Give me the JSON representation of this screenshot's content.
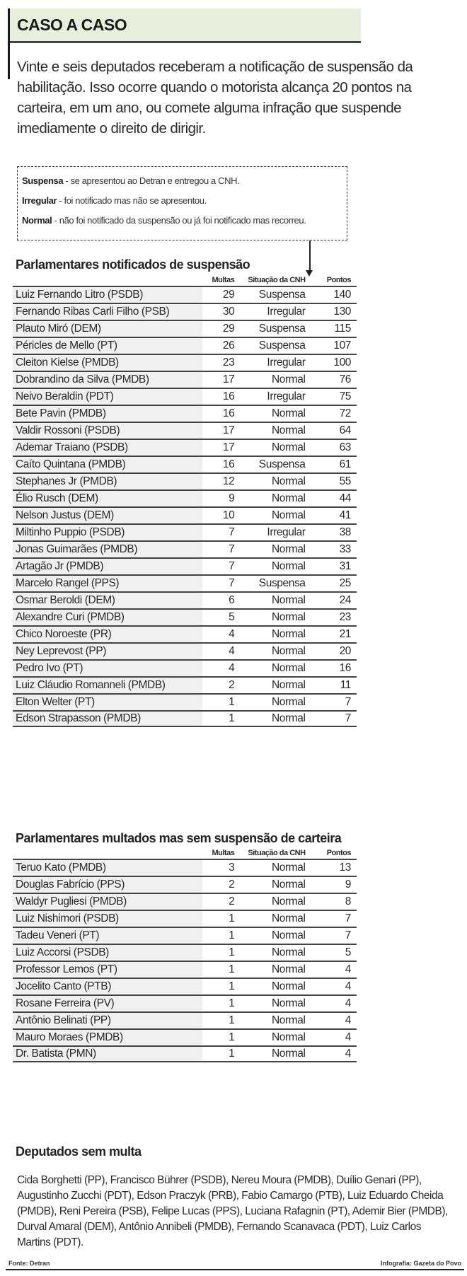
{
  "header": {
    "title": "CASO A CASO"
  },
  "lead": "Vinte e seis deputados receberam a notificação de suspensão da habilitação. Isso ocorre quando o motorista alcança 20 pontos na carteira, em um ano, ou comete alguma infração que suspende imediamente o direito de dirigir.",
  "legend": [
    {
      "term": "Suspensa",
      "desc": " - se apresentou ao Detran e entregou a CNH."
    },
    {
      "term": "Irregular",
      "desc": " - foi notificado mas não se apresentou."
    },
    {
      "term": "Normal",
      "desc": " - não foi notificado da suspensão ou já foi notificado mas recorreu."
    }
  ],
  "columns": {
    "multas": "Multas",
    "situacao": "Situação da CNH",
    "pontos": "Pontos"
  },
  "suspended": {
    "title": "Parlamentares notificados de suspensão",
    "rows": [
      {
        "name": "Luiz Fernando Litro (PSDB)",
        "multas": "29",
        "situacao": "Suspensa",
        "pontos": "140"
      },
      {
        "name": "Fernando Ribas Carli Filho (PSB)",
        "multas": "30",
        "situacao": "Irregular",
        "pontos": "130"
      },
      {
        "name": "Plauto Miró (DEM)",
        "multas": "29",
        "situacao": "Suspensa",
        "pontos": "115"
      },
      {
        "name": "Péricles de Mello (PT)",
        "multas": "26",
        "situacao": "Suspensa",
        "pontos": "107"
      },
      {
        "name": "Cleiton Kielse (PMDB)",
        "multas": "23",
        "situacao": "Irregular",
        "pontos": "100"
      },
      {
        "name": "Dobrandino da Silva (PMDB)",
        "multas": "17",
        "situacao": "Normal",
        "pontos": "76"
      },
      {
        "name": "Neivo Beraldin (PDT)",
        "multas": "16",
        "situacao": "Irregular",
        "pontos": "75"
      },
      {
        "name": "Bete Pavin (PMDB)",
        "multas": "16",
        "situacao": "Normal",
        "pontos": "72"
      },
      {
        "name": "Valdir Rossoni (PSDB)",
        "multas": "17",
        "situacao": "Normal",
        "pontos": "64"
      },
      {
        "name": "Ademar Traiano (PSDB)",
        "multas": "17",
        "situacao": "Normal",
        "pontos": "63"
      },
      {
        "name": "Caíto Quintana (PMDB)",
        "multas": "16",
        "situacao": "Suspensa",
        "pontos": "61"
      },
      {
        "name": "Stephanes Jr (PMDB)",
        "multas": "12",
        "situacao": "Normal",
        "pontos": "55"
      },
      {
        "name": "Élio Rusch (DEM)",
        "multas": "9",
        "situacao": "Normal",
        "pontos": "44"
      },
      {
        "name": "Nelson Justus (DEM)",
        "multas": "10",
        "situacao": "Normal",
        "pontos": "41"
      },
      {
        "name": "Miltinho Puppio (PSDB)",
        "multas": "7",
        "situacao": "Irregular",
        "pontos": "38"
      },
      {
        "name": "Jonas Guimarães (PMDB)",
        "multas": "7",
        "situacao": "Normal",
        "pontos": "33"
      },
      {
        "name": "Artagão Jr (PMDB)",
        "multas": "7",
        "situacao": "Normal",
        "pontos": "31"
      },
      {
        "name": "Marcelo Rangel (PPS)",
        "multas": "7",
        "situacao": "Suspensa",
        "pontos": "25"
      },
      {
        "name": "Osmar Beroldi (DEM)",
        "multas": "6",
        "situacao": "Normal",
        "pontos": "24"
      },
      {
        "name": "Alexandre Curi (PMDB)",
        "multas": "5",
        "situacao": "Normal",
        "pontos": "23"
      },
      {
        "name": "Chico Noroeste (PR)",
        "multas": "4",
        "situacao": "Normal",
        "pontos": "21"
      },
      {
        "name": "Ney Leprevost (PP)",
        "multas": "4",
        "situacao": "Normal",
        "pontos": "20"
      },
      {
        "name": "Pedro Ivo (PT)",
        "multas": "4",
        "situacao": "Normal",
        "pontos": "16"
      },
      {
        "name": "Luiz Cláudio Romanneli (PMDB)",
        "multas": "2",
        "situacao": "Normal",
        "pontos": "11"
      },
      {
        "name": "Elton Welter (PT)",
        "multas": "1",
        "situacao": "Normal",
        "pontos": "7"
      },
      {
        "name": "Edson Strapasson (PMDB)",
        "multas": "1",
        "situacao": "Normal",
        "pontos": "7"
      }
    ]
  },
  "fined": {
    "title": "Parlamentares multados mas sem suspensão de carteira",
    "rows": [
      {
        "name": "Teruo Kato (PMDB)",
        "multas": "3",
        "situacao": "Normal",
        "pontos": "13"
      },
      {
        "name": "Douglas Fabrício (PPS)",
        "multas": "2",
        "situacao": "Normal",
        "pontos": "9"
      },
      {
        "name": "Waldyr Pugliesi (PMDB)",
        "multas": "2",
        "situacao": "Normal",
        "pontos": "8"
      },
      {
        "name": "Luiz Nishimori (PSDB)",
        "multas": "1",
        "situacao": "Normal",
        "pontos": "7"
      },
      {
        "name": "Tadeu Veneri (PT)",
        "multas": "1",
        "situacao": "Normal",
        "pontos": "7"
      },
      {
        "name": "Luiz Accorsi (PSDB)",
        "multas": "1",
        "situacao": "Normal",
        "pontos": "5"
      },
      {
        "name": "Professor Lemos (PT)",
        "multas": "1",
        "situacao": "Normal",
        "pontos": "4"
      },
      {
        "name": "Jocelito Canto (PTB)",
        "multas": "1",
        "situacao": "Normal",
        "pontos": "4"
      },
      {
        "name": "Rosane Ferreira (PV)",
        "multas": "1",
        "situacao": "Normal",
        "pontos": "4"
      },
      {
        "name": "Antônio Belinati (PP)",
        "multas": "1",
        "situacao": "Normal",
        "pontos": "4"
      },
      {
        "name": "Mauro Moraes (PMDB)",
        "multas": "1",
        "situacao": "Normal",
        "pontos": "4"
      },
      {
        "name": "Dr. Batista (PMN)",
        "multas": "1",
        "situacao": "Normal",
        "pontos": "4"
      }
    ]
  },
  "no_fine": {
    "title": "Deputados sem multa",
    "text": "Cida Borghetti (PP), Francisco Bührer (PSDB), Nereu Moura (PMDB), Duílio Genari (PP), Augustinho Zucchi (PDT), Edson Praczyk (PRB), Fabio Camargo (PTB), Luiz Eduardo Cheida (PMDB), Reni Pereira (PSB), Felipe Lucas (PPS), Luciana Rafagnin (PT),  Ademir Bier (PMDB), Durval Amaral (DEM), Antônio Annibeli (PMDB), Fernando Scanavaca (PDT), Luiz Carlos Martins (PDT)."
  },
  "footer": {
    "source": "Fonte: Detran",
    "credit": "Infografia: Gazeta do Povo"
  },
  "colors": {
    "title_bg": "#e9efdc",
    "name_column_bg": "#f0f0f0",
    "rule": "#444444"
  }
}
